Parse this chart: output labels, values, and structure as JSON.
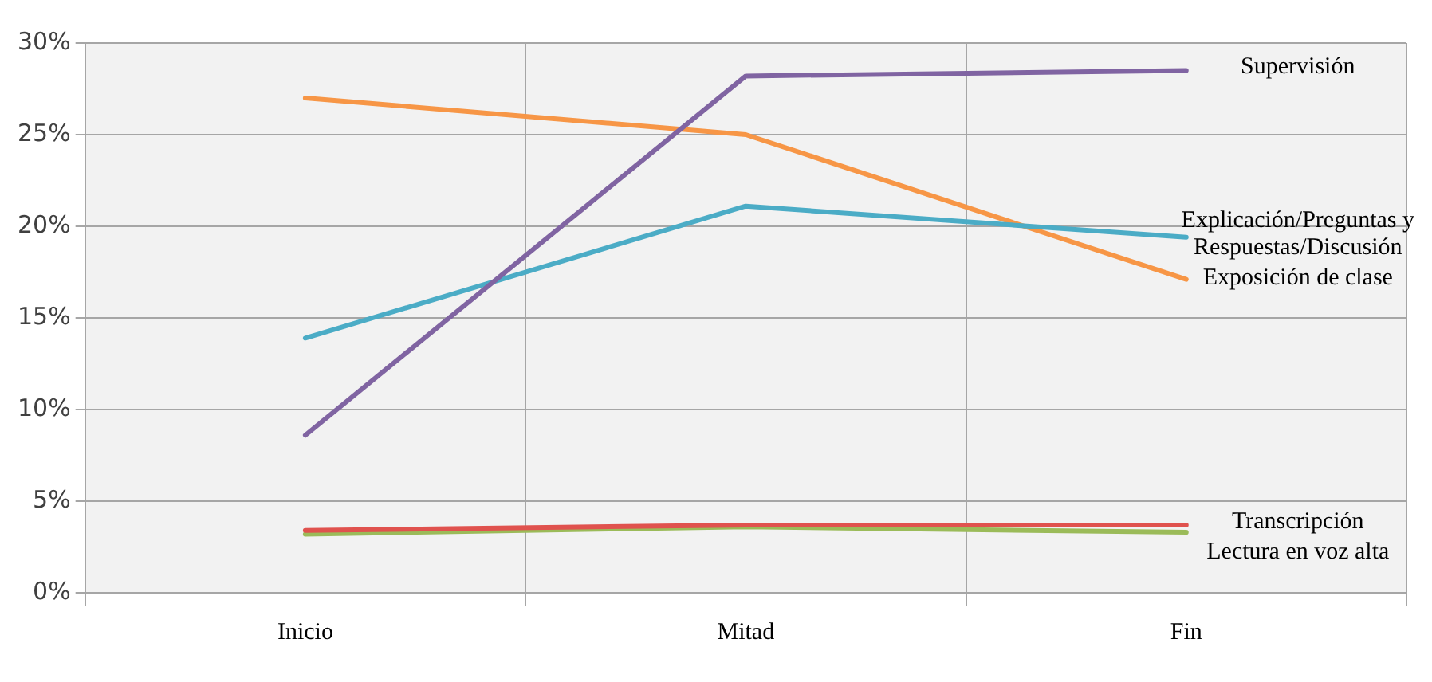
{
  "chart_data": {
    "type": "line",
    "categories": [
      "Inicio",
      "Mitad",
      "Fin"
    ],
    "series": [
      {
        "name": "Supervisión",
        "color": "#8064a2",
        "values": [
          8.6,
          28.2,
          28.5
        ]
      },
      {
        "name": "Explicación/Preguntas y Respuestas/Discusión",
        "color": "#4bacc6",
        "values": [
          13.9,
          21.1,
          19.4
        ]
      },
      {
        "name": "Exposición de clase",
        "color": "#f79646",
        "values": [
          27.0,
          25.0,
          17.1
        ]
      },
      {
        "name": "Transcripción",
        "color": "#e0524e",
        "values": [
          3.4,
          3.7,
          3.7
        ]
      },
      {
        "name": "Lectura en voz alta",
        "color": "#9bbb59",
        "values": [
          3.2,
          3.6,
          3.3
        ]
      }
    ],
    "ylim": [
      0,
      30
    ],
    "yticks": [
      {
        "value": 0,
        "label": "0%"
      },
      {
        "value": 5,
        "label": "5%"
      },
      {
        "value": 10,
        "label": "10%"
      },
      {
        "value": 15,
        "label": "15%"
      },
      {
        "value": 20,
        "label": "20%"
      },
      {
        "value": 25,
        "label": "25%"
      },
      {
        "value": 30,
        "label": "30%"
      }
    ],
    "grid": true,
    "legend": false,
    "marker": "none",
    "line_style": "solid"
  }
}
